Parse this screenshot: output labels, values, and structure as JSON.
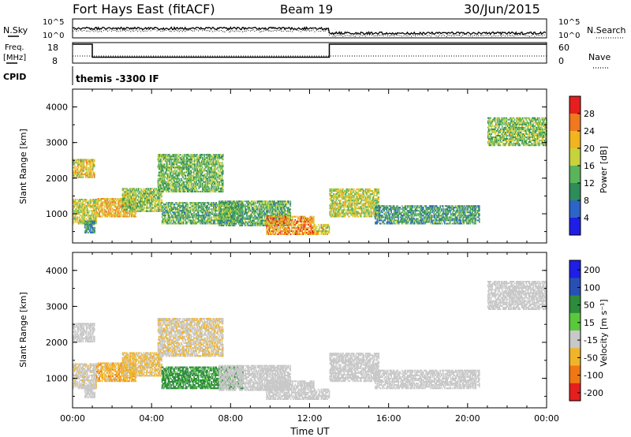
{
  "header": {
    "station": "Fort Hays East (fitACF)",
    "beam": "Beam 19",
    "date": "30/Jun/2015"
  },
  "noise_panel": {
    "left_label": "N.Sky",
    "right_label": "N.Search",
    "ytick_top": "10^5",
    "ytick_bottom": "10^0",
    "right_ytick_top": "10^5",
    "right_ytick_bottom": "10^0"
  },
  "freq_panel": {
    "left_label_1": "Freq.",
    "left_label_2": "[MHz]",
    "right_label": "Nave",
    "left_ticks": [
      "18",
      "8"
    ],
    "right_ticks": [
      "60",
      "0"
    ],
    "freq_segments": [
      {
        "start": 0,
        "end": 1,
        "value": 18
      },
      {
        "start": 1,
        "end": 13,
        "value": 10.5
      },
      {
        "start": 13,
        "end": 24,
        "value": 18
      }
    ]
  },
  "cpid_panel": {
    "label": "CPID",
    "program": "themis -3300 IF"
  },
  "chart_data": {
    "type": "heatmap",
    "x_ticks": [
      "00:00",
      "04:00",
      "08:00",
      "12:00",
      "16:00",
      "20:00",
      "00:00"
    ],
    "x_range_hours": [
      0,
      24
    ],
    "xlabel": "Time UT",
    "ylabel": "Slant Range [km]",
    "y_ticks": [
      "1000",
      "2000",
      "3000",
      "4000"
    ],
    "y_range_km": [
      180,
      4500
    ],
    "power_colorbar": {
      "label": "Power [dB]",
      "ticks": [
        "4",
        "8",
        "12",
        "16",
        "20",
        "24",
        "28"
      ],
      "range": [
        0,
        32
      ],
      "colors": [
        "#1e1ee6",
        "#2d64c8",
        "#2d8c5a",
        "#5ab45a",
        "#c8d23c",
        "#f0b41e",
        "#f0781e",
        "#e61e1e"
      ]
    },
    "velocity_colorbar": {
      "label": "Velocity [m s⁻¹]",
      "ticks": [
        "200",
        "100",
        "50",
        "15",
        "-15",
        "-50",
        "-100",
        "-200"
      ],
      "colors": [
        "#1e1ee6",
        "#2850b4",
        "#2d8c3c",
        "#5ac83c",
        "#c8c8c8",
        "#f0b428",
        "#f07814",
        "#e61e1e"
      ]
    },
    "echo_regions": [
      {
        "t0": 0,
        "t1": 1.1,
        "r0": 2000,
        "r1": 2500,
        "power": 20,
        "velocity": 0
      },
      {
        "t0": 0,
        "t1": 1.2,
        "r0": 700,
        "r1": 1400,
        "power": 18,
        "velocity": -5
      },
      {
        "t0": 0.6,
        "t1": 1.1,
        "r0": 450,
        "r1": 800,
        "power": 10,
        "velocity": 0
      },
      {
        "t0": 1.2,
        "t1": 3.2,
        "r0": 900,
        "r1": 1400,
        "power": 22,
        "velocity": -25
      },
      {
        "t0": 2.5,
        "t1": 4.5,
        "r0": 1050,
        "r1": 1700,
        "power": 16,
        "velocity": -20
      },
      {
        "t0": 4.3,
        "t1": 7.6,
        "r0": 1600,
        "r1": 2650,
        "power": 14,
        "velocity": -10
      },
      {
        "t0": 4.5,
        "t1": 8.6,
        "r0": 700,
        "r1": 1300,
        "power": 13,
        "velocity": 40
      },
      {
        "t0": 7.4,
        "t1": 11.0,
        "r0": 650,
        "r1": 1350,
        "power": 13,
        "velocity": 0
      },
      {
        "t0": 9.8,
        "t1": 12.2,
        "r0": 400,
        "r1": 900,
        "power": 24,
        "velocity": 0
      },
      {
        "t0": 12.2,
        "t1": 13.0,
        "r0": 400,
        "r1": 700,
        "power": 20,
        "velocity": 0
      },
      {
        "t0": 13.0,
        "t1": 15.5,
        "r0": 900,
        "r1": 1700,
        "power": 18,
        "velocity": 0
      },
      {
        "t0": 15.3,
        "t1": 20.6,
        "r0": 700,
        "r1": 1200,
        "power": 11,
        "velocity": 0
      },
      {
        "t0": 21.0,
        "t1": 24.0,
        "r0": 2900,
        "r1": 3700,
        "power": 15,
        "velocity": 0
      }
    ]
  }
}
